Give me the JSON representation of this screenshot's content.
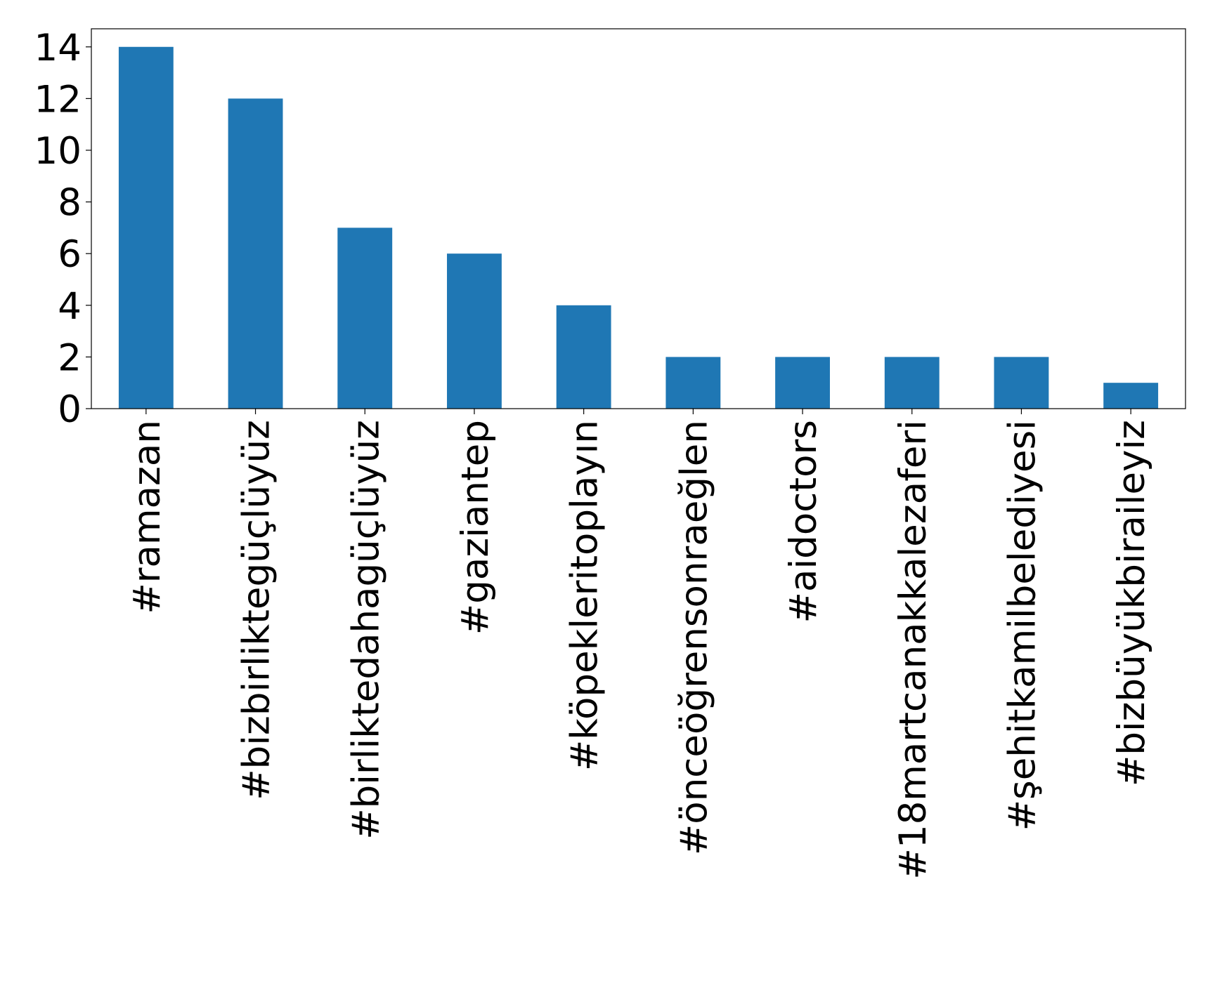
{
  "chart_data": {
    "type": "bar",
    "categories": [
      "#ramazan",
      "#bizbirliktegüçlüyüz",
      "#birliktedahagüçlüyüz",
      "#gaziantep",
      "#köpekleritoplayın",
      "#önceöğrensonraeğlen",
      "#aidoctors",
      "#18martcanakkalezaferi",
      "#şehitkamilbelediyesi",
      "#bizbüyükbiraileyiz"
    ],
    "values": [
      14,
      12,
      7,
      6,
      4,
      2,
      2,
      2,
      2,
      1
    ],
    "color": "#1f77b4",
    "ylim": [
      0,
      14.7
    ],
    "yticks": [
      0,
      2,
      4,
      6,
      8,
      10,
      12,
      14
    ],
    "grid": false
  }
}
